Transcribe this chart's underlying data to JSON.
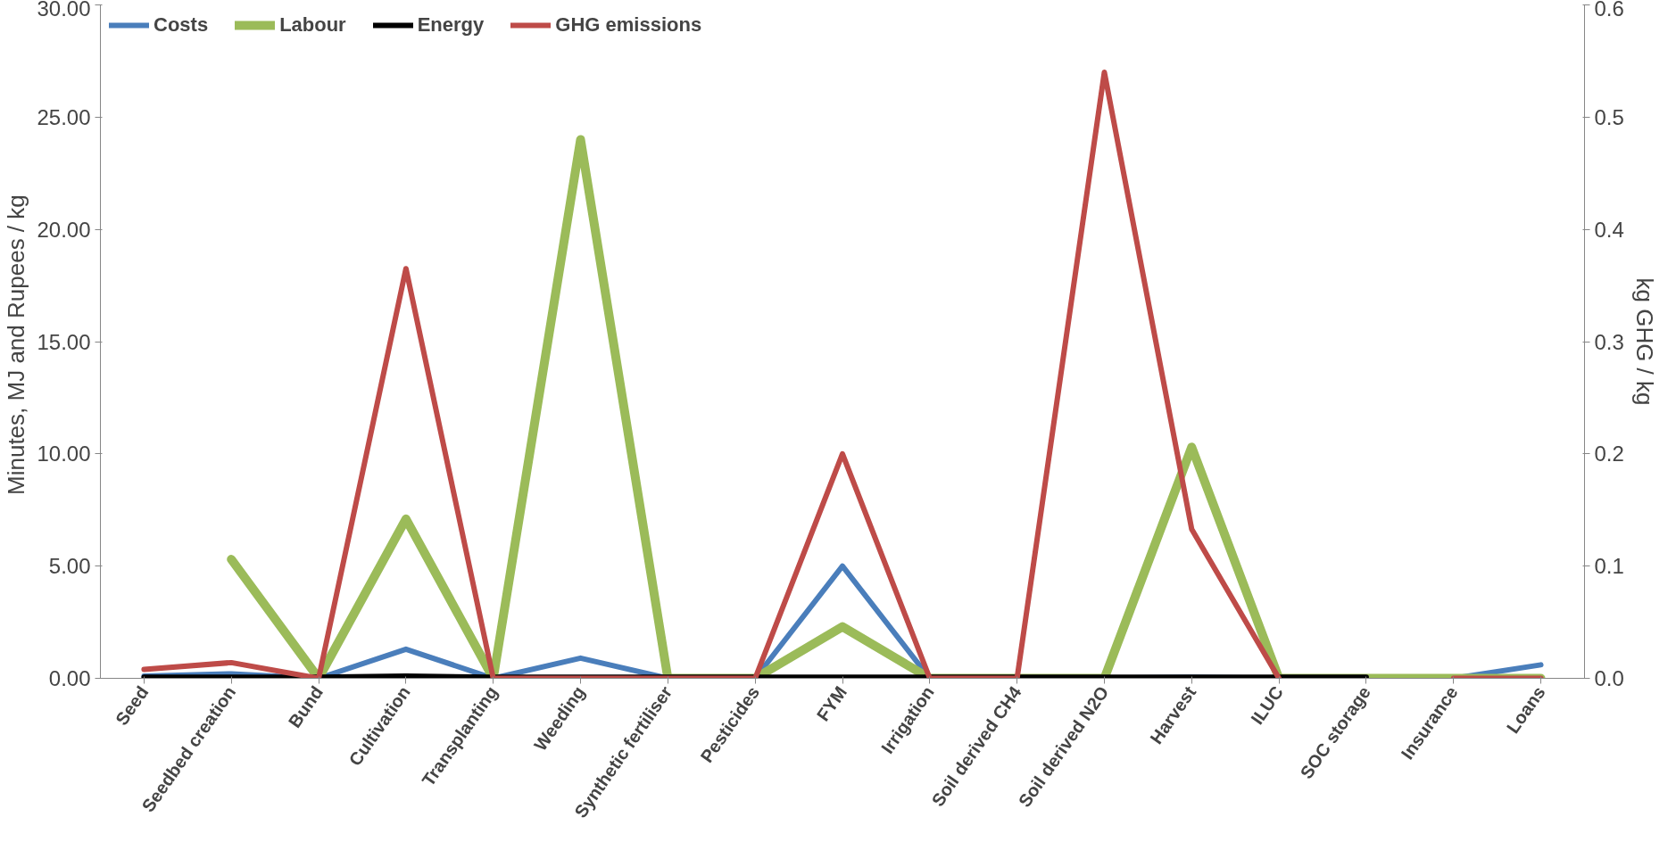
{
  "chart_data": {
    "type": "line",
    "ylabel": "Minutes, MJ  and Rupees / kg",
    "y2label": "kg GHG / kg",
    "categories": [
      "Seed",
      "Seedbed creation",
      "Bund",
      "Cultivation",
      "Transplanting",
      "Weeding",
      "Synthetic fertiliser",
      "Pesticides",
      "FYM",
      "Irrigation",
      "Soil derived CH4",
      "Soil derived N2O",
      "Harvest",
      "ILUC",
      "SOC storage",
      "Insurance",
      "Loans"
    ],
    "series": [
      {
        "name": "Costs",
        "color": "#4a7ebb",
        "values": [
          0.1,
          0.2,
          0,
          1.3,
          0,
          0.9,
          0,
          0,
          5.0,
          0,
          0,
          0,
          0.05,
          0,
          0,
          0,
          0.6
        ]
      },
      {
        "name": "Labour",
        "color": "#9bbb59",
        "values": [
          null,
          5.3,
          0,
          7.1,
          0,
          24.0,
          0,
          0,
          2.3,
          0,
          0,
          0,
          10.3,
          0,
          0,
          0,
          0
        ]
      },
      {
        "name": "Energy",
        "color": "#000000",
        "values": [
          0.05,
          0.05,
          0.05,
          0.1,
          0.05,
          0.05,
          0.05,
          0.05,
          0.05,
          0.05,
          0.05,
          0.05,
          0.05,
          0.05,
          0.05,
          null,
          null
        ]
      },
      {
        "name": "GHG emissions",
        "color": "#be4b48",
        "axis": "y2",
        "values": [
          0.008,
          0.014,
          0,
          0.365,
          0,
          0,
          0,
          0,
          0.2,
          0,
          0,
          0.54,
          0.133,
          0,
          null,
          0,
          0
        ]
      }
    ],
    "ylim": [
      0,
      30
    ],
    "yticks": [
      {
        "value": 0,
        "label": "0.00"
      },
      {
        "value": 5,
        "label": "5.00"
      },
      {
        "value": 10,
        "label": "10.00"
      },
      {
        "value": 15,
        "label": "15.00"
      },
      {
        "value": 20,
        "label": "20.00"
      },
      {
        "value": 25,
        "label": "25.00"
      },
      {
        "value": 30,
        "label": "30.00"
      }
    ],
    "y2lim": [
      0,
      0.6
    ],
    "y2ticks": [
      {
        "value": 0,
        "label": "0.0"
      },
      0.1,
      0.2,
      0.3,
      0.4,
      0.5,
      0.6
    ],
    "legend": "top left",
    "grid": false
  }
}
